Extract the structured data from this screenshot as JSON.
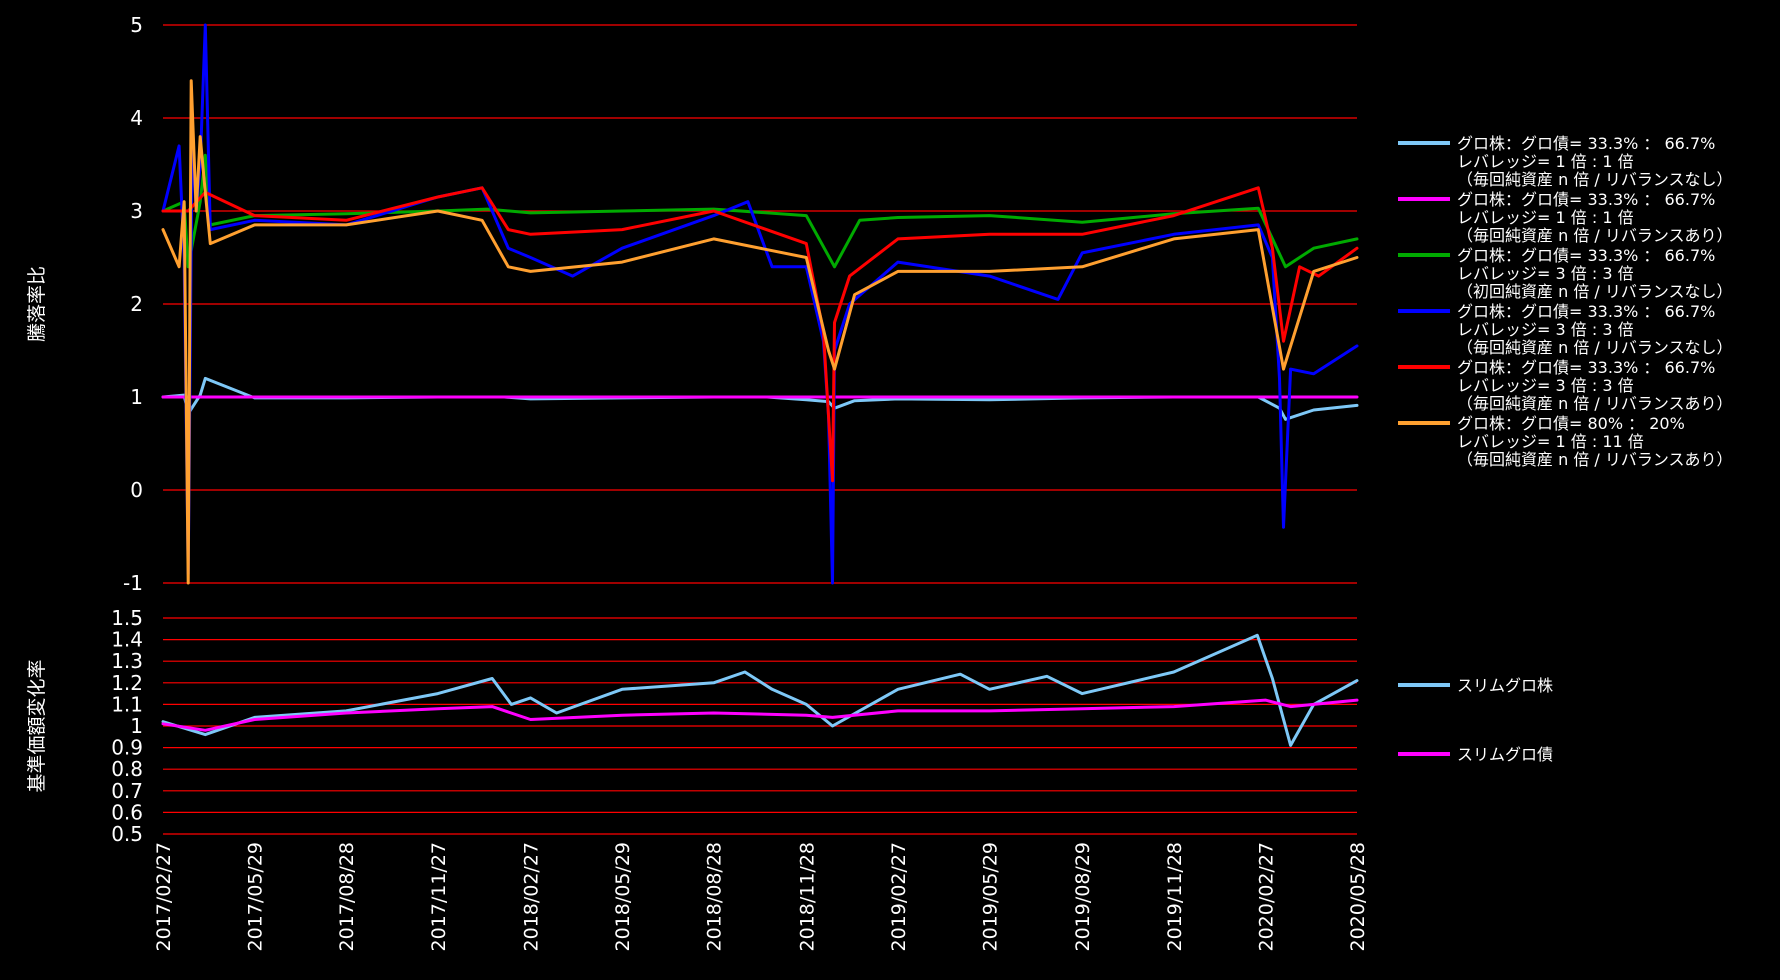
{
  "chart_data": [
    {
      "type": "line",
      "ylabel": "騰落率比",
      "ylim": [
        -1,
        5
      ],
      "yticks": [
        5,
        4,
        3,
        2,
        1,
        0,
        -1
      ],
      "xlim": [
        "2017/02/27",
        "2020/05/28"
      ],
      "grid": true,
      "grid_color": "#ff0000",
      "legend_position": "right",
      "series": [
        {
          "name": "グロ株：グロ債= 33.3% ： 66.7%\nレバレッジ= 1 倍 : 1 倍\n（毎回純資産 n 倍 / リバランスなし）",
          "color": "#7ec8f7",
          "x": [
            "2017/02/27",
            "2017/03/20",
            "2017/03/24",
            "2017/04/05",
            "2017/04/10",
            "2017/05/29",
            "2017/08/28",
            "2017/11/27",
            "2018/02/01",
            "2018/02/27",
            "2018/05/29",
            "2018/08/28",
            "2018/10/20",
            "2018/11/28",
            "2018/12/20",
            "2018/12/26",
            "2019/01/15",
            "2019/02/27",
            "2019/05/29",
            "2019/08/29",
            "2019/11/28",
            "2020/02/20",
            "2020/03/12",
            "2020/03/18",
            "2020/04/15",
            "2020/05/28"
          ],
          "values": [
            1.0,
            1.02,
            0.82,
            1.02,
            1.2,
            0.99,
            0.99,
            1.0,
            1.0,
            0.98,
            0.99,
            1.0,
            1.0,
            0.97,
            0.95,
            0.88,
            0.96,
            0.98,
            0.97,
            0.99,
            1.0,
            1.0,
            0.88,
            0.76,
            0.86,
            0.91
          ]
        },
        {
          "name": "グロ株：グロ債= 33.3% ： 66.7%\nレバレッジ= 1 倍 : 1 倍\n（毎回純資産 n 倍 / リバランスあり）",
          "color": "#ff00ff",
          "x": [
            "2017/02/27",
            "2018/02/27",
            "2018/11/28",
            "2019/02/27",
            "2019/11/28",
            "2020/03/15",
            "2020/05/28"
          ],
          "values": [
            1.0,
            1.0,
            1.0,
            1.0,
            1.0,
            1.0,
            1.0
          ]
        },
        {
          "name": "グロ株：グロ債= 33.3% ： 66.7%\nレバレッジ= 3 倍 : 3 倍\n（初回純資産 n 倍 / リバランスなし）",
          "color": "#00aa00",
          "x": [
            "2017/02/27",
            "2017/03/20",
            "2017/03/24",
            "2017/04/05",
            "2017/04/10",
            "2017/04/15",
            "2017/05/29",
            "2017/08/28",
            "2017/11/27",
            "2018/01/15",
            "2018/02/27",
            "2018/05/29",
            "2018/08/28",
            "2018/11/28",
            "2018/12/26",
            "2019/01/20",
            "2019/02/27",
            "2019/05/29",
            "2019/08/29",
            "2019/11/28",
            "2020/02/20",
            "2020/03/18",
            "2020/04/15",
            "2020/05/28"
          ],
          "values": [
            3.0,
            3.1,
            2.4,
            3.1,
            3.6,
            2.85,
            2.95,
            2.97,
            3.0,
            3.02,
            2.98,
            3.0,
            3.02,
            2.95,
            2.4,
            2.9,
            2.93,
            2.95,
            2.88,
            2.97,
            3.03,
            2.4,
            2.6,
            2.7
          ]
        },
        {
          "name": "グロ株：グロ債= 33.3% ： 66.7%\nレバレッジ= 3 倍 : 3 倍\n（毎回純資産 n 倍 / リバランスなし）",
          "color": "#0000ff",
          "x": [
            "2017/02/27",
            "2017/03/15",
            "2017/03/20",
            "2017/03/24",
            "2017/03/28",
            "2017/04/01",
            "2017/04/05",
            "2017/04/10",
            "2017/04/15",
            "2017/05/29",
            "2017/08/28",
            "2017/11/27",
            "2018/01/10",
            "2018/02/05",
            "2018/02/27",
            "2018/04/10",
            "2018/05/29",
            "2018/08/28",
            "2018/10/01",
            "2018/10/25",
            "2018/11/28",
            "2018/12/15",
            "2018/12/20",
            "2018/12/24",
            "2018/12/26",
            "2019/01/10",
            "2019/02/27",
            "2019/05/29",
            "2019/08/05",
            "2019/08/29",
            "2019/11/28",
            "2020/02/20",
            "2020/03/05",
            "2020/03/12",
            "2020/03/16",
            "2020/03/23",
            "2020/04/15",
            "2020/05/28"
          ],
          "values": [
            3.0,
            3.7,
            2.5,
            -0.9,
            3.8,
            3.0,
            3.5,
            5.0,
            2.8,
            2.9,
            2.85,
            3.15,
            3.25,
            2.6,
            2.5,
            2.3,
            2.6,
            2.95,
            3.1,
            2.4,
            2.4,
            1.6,
            0.8,
            -1.0,
            1.5,
            2.0,
            2.45,
            2.3,
            2.05,
            2.55,
            2.75,
            2.85,
            2.5,
            1.2,
            -0.4,
            1.3,
            1.25,
            1.55
          ]
        },
        {
          "name": "グロ株：グロ債= 33.3% ： 66.7%\nレバレッジ= 3 倍 : 3 倍\n（毎回純資産 n 倍 / リバランスあり）",
          "color": "#ff0000",
          "x": [
            "2017/02/27",
            "2017/03/20",
            "2017/03/24",
            "2017/04/10",
            "2017/05/29",
            "2017/08/28",
            "2017/11/27",
            "2018/01/10",
            "2018/02/05",
            "2018/02/27",
            "2018/05/29",
            "2018/08/28",
            "2018/11/28",
            "2018/12/15",
            "2018/12/24",
            "2018/12/26",
            "2019/01/10",
            "2019/02/27",
            "2019/05/29",
            "2019/08/29",
            "2019/11/28",
            "2020/02/20",
            "2020/03/05",
            "2020/03/16",
            "2020/04/01",
            "2020/04/20",
            "2020/05/28"
          ],
          "values": [
            3.0,
            3.0,
            3.0,
            3.2,
            2.95,
            2.9,
            3.15,
            3.25,
            2.8,
            2.75,
            2.8,
            3.0,
            2.65,
            1.7,
            0.1,
            1.8,
            2.3,
            2.7,
            2.75,
            2.75,
            2.95,
            3.25,
            2.6,
            1.6,
            2.4,
            2.3,
            2.6
          ]
        },
        {
          "name": "グロ株：グロ債= 80% ： 20%\nレバレッジ= 1 倍 : 11 倍\n（毎回純資産 n 倍 / リバランスあり）",
          "color": "#ffa030",
          "x": [
            "2017/02/27",
            "2017/03/15",
            "2017/03/20",
            "2017/03/24",
            "2017/03/27",
            "2017/04/01",
            "2017/04/05",
            "2017/04/10",
            "2017/04/15",
            "2017/05/29",
            "2017/08/28",
            "2017/11/27",
            "2018/01/10",
            "2018/02/05",
            "2018/02/27",
            "2018/05/29",
            "2018/08/28",
            "2018/11/28",
            "2018/12/20",
            "2018/12/26",
            "2019/01/15",
            "2019/02/27",
            "2019/05/29",
            "2019/08/29",
            "2019/11/28",
            "2020/02/20",
            "2020/03/16",
            "2020/04/15",
            "2020/05/28"
          ],
          "values": [
            2.8,
            2.4,
            3.1,
            -1.0,
            4.4,
            3.0,
            3.8,
            3.2,
            2.65,
            2.85,
            2.85,
            3.0,
            2.9,
            2.4,
            2.35,
            2.45,
            2.7,
            2.5,
            1.5,
            1.3,
            2.1,
            2.35,
            2.35,
            2.4,
            2.7,
            2.8,
            1.3,
            2.35,
            2.5
          ]
        }
      ]
    },
    {
      "type": "line",
      "ylabel": "基準価額変化率",
      "ylim": [
        0.5,
        1.5
      ],
      "yticks": [
        1.5,
        1.4,
        1.3,
        1.2,
        1.1,
        1,
        0.9,
        0.8,
        0.7,
        0.6,
        0.5
      ],
      "xlim": [
        "2017/02/27",
        "2020/05/28"
      ],
      "xticks": [
        "2017/02/27",
        "2017/05/29",
        "2017/08/28",
        "2017/11/27",
        "2018/02/27",
        "2018/05/29",
        "2018/08/28",
        "2018/11/28",
        "2019/02/27",
        "2019/05/29",
        "2019/08/29",
        "2019/11/28",
        "2020/02/27",
        "2020/05/28"
      ],
      "grid": true,
      "grid_color": "#ff0000",
      "legend_position": "right",
      "series": [
        {
          "name": "スリムグロ株",
          "color": "#7ec8f7",
          "x": [
            "2017/02/27",
            "2017/04/10",
            "2017/05/29",
            "2017/08/28",
            "2017/11/27",
            "2018/01/20",
            "2018/02/08",
            "2018/02/27",
            "2018/03/25",
            "2018/05/29",
            "2018/08/28",
            "2018/09/28",
            "2018/10/25",
            "2018/11/28",
            "2018/12/24",
            "2019/02/27",
            "2019/04/30",
            "2019/05/29",
            "2019/07/25",
            "2019/08/29",
            "2019/11/28",
            "2020/02/19",
            "2020/03/05",
            "2020/03/23",
            "2020/04/15",
            "2020/05/28"
          ],
          "values": [
            1.02,
            0.96,
            1.04,
            1.07,
            1.15,
            1.22,
            1.1,
            1.13,
            1.06,
            1.17,
            1.2,
            1.25,
            1.17,
            1.1,
            1.0,
            1.17,
            1.24,
            1.17,
            1.23,
            1.15,
            1.25,
            1.42,
            1.22,
            0.91,
            1.1,
            1.21
          ]
        },
        {
          "name": "スリムグロ債",
          "color": "#ff00ff",
          "x": [
            "2017/02/27",
            "2017/04/10",
            "2017/05/29",
            "2017/08/28",
            "2017/11/27",
            "2018/01/20",
            "2018/02/27",
            "2018/05/29",
            "2018/08/28",
            "2018/11/28",
            "2018/12/24",
            "2019/02/27",
            "2019/05/29",
            "2019/08/29",
            "2019/11/28",
            "2020/02/27",
            "2020/03/23",
            "2020/05/28"
          ],
          "values": [
            1.01,
            0.98,
            1.03,
            1.06,
            1.08,
            1.09,
            1.03,
            1.05,
            1.06,
            1.05,
            1.04,
            1.07,
            1.07,
            1.08,
            1.09,
            1.12,
            1.09,
            1.12
          ]
        }
      ]
    }
  ]
}
